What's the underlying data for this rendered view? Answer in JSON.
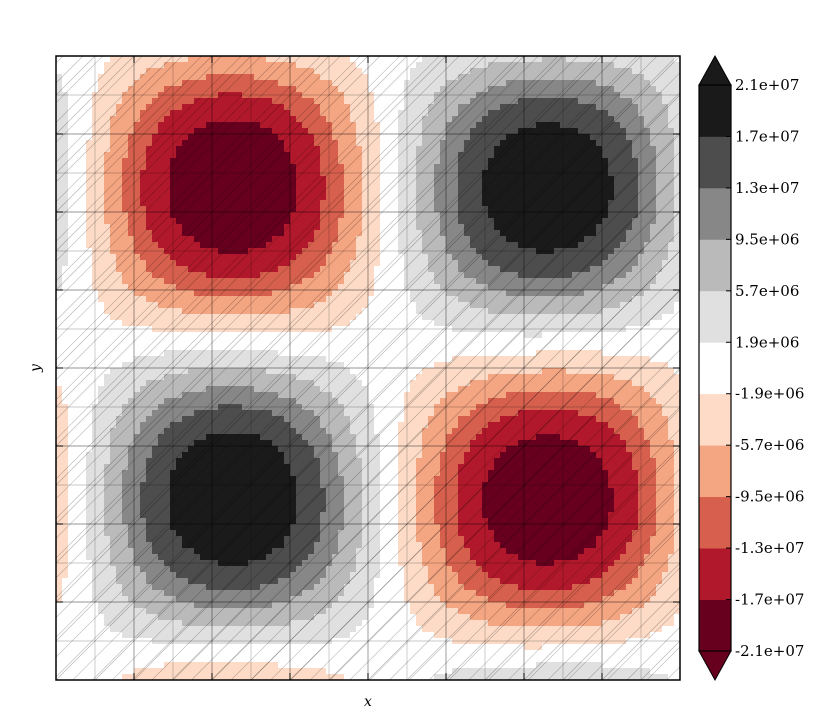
{
  "chart_data": {
    "type": "contourf",
    "title": "",
    "xlabel": "x",
    "ylabel": "y",
    "tick_labels_visible": false,
    "x_tick_count": 9,
    "y_tick_count": 9,
    "grid": true,
    "hatch": "/",
    "triangulated_mesh": true,
    "colormap": "RdGy",
    "extend": "both",
    "field_model": "A * sin(2*pi*(u - u0)) * sin(2*pi*(v - v0))",
    "field_params": {
      "amplitude": 21000000,
      "u0": 0.035,
      "v0": 0.04
    },
    "extremes": [
      {
        "kind": "max",
        "value": 21000000,
        "location": "upper-center"
      },
      {
        "kind": "max",
        "value": 21000000,
        "location": "lower-left"
      },
      {
        "kind": "max",
        "value": 21000000,
        "location": "lower-right"
      },
      {
        "kind": "min",
        "value": -21000000,
        "location": "lower-center"
      },
      {
        "kind": "min",
        "value": -21000000,
        "location": "upper-right"
      },
      {
        "kind": "min",
        "value": -21000000,
        "location": "upper-left"
      }
    ],
    "colorbar": {
      "levels": [
        -21000000,
        -17000000,
        -13000000,
        -9500000,
        -5700000,
        -1900000,
        1900000,
        5700000,
        9500000,
        13000000,
        17000000,
        21000000
      ],
      "tick_labels": [
        "-2.1e+07",
        "-1.7e+07",
        "-1.3e+07",
        "-9.5e+06",
        "-5.7e+06",
        "-1.9e+06",
        "1.9e+06",
        "5.7e+06",
        "9.5e+06",
        "1.3e+07",
        "1.7e+07",
        "2.1e+07"
      ],
      "colors": [
        "#67001f",
        "#b2182b",
        "#d6604d",
        "#f4a582",
        "#fddbc7",
        "#ffffff",
        "#e0e0e0",
        "#bababa",
        "#878787",
        "#4d4d4d",
        "#1a1a1a"
      ],
      "extend_low_color": "#67001f",
      "extend_high_color": "#1a1a1a"
    }
  }
}
